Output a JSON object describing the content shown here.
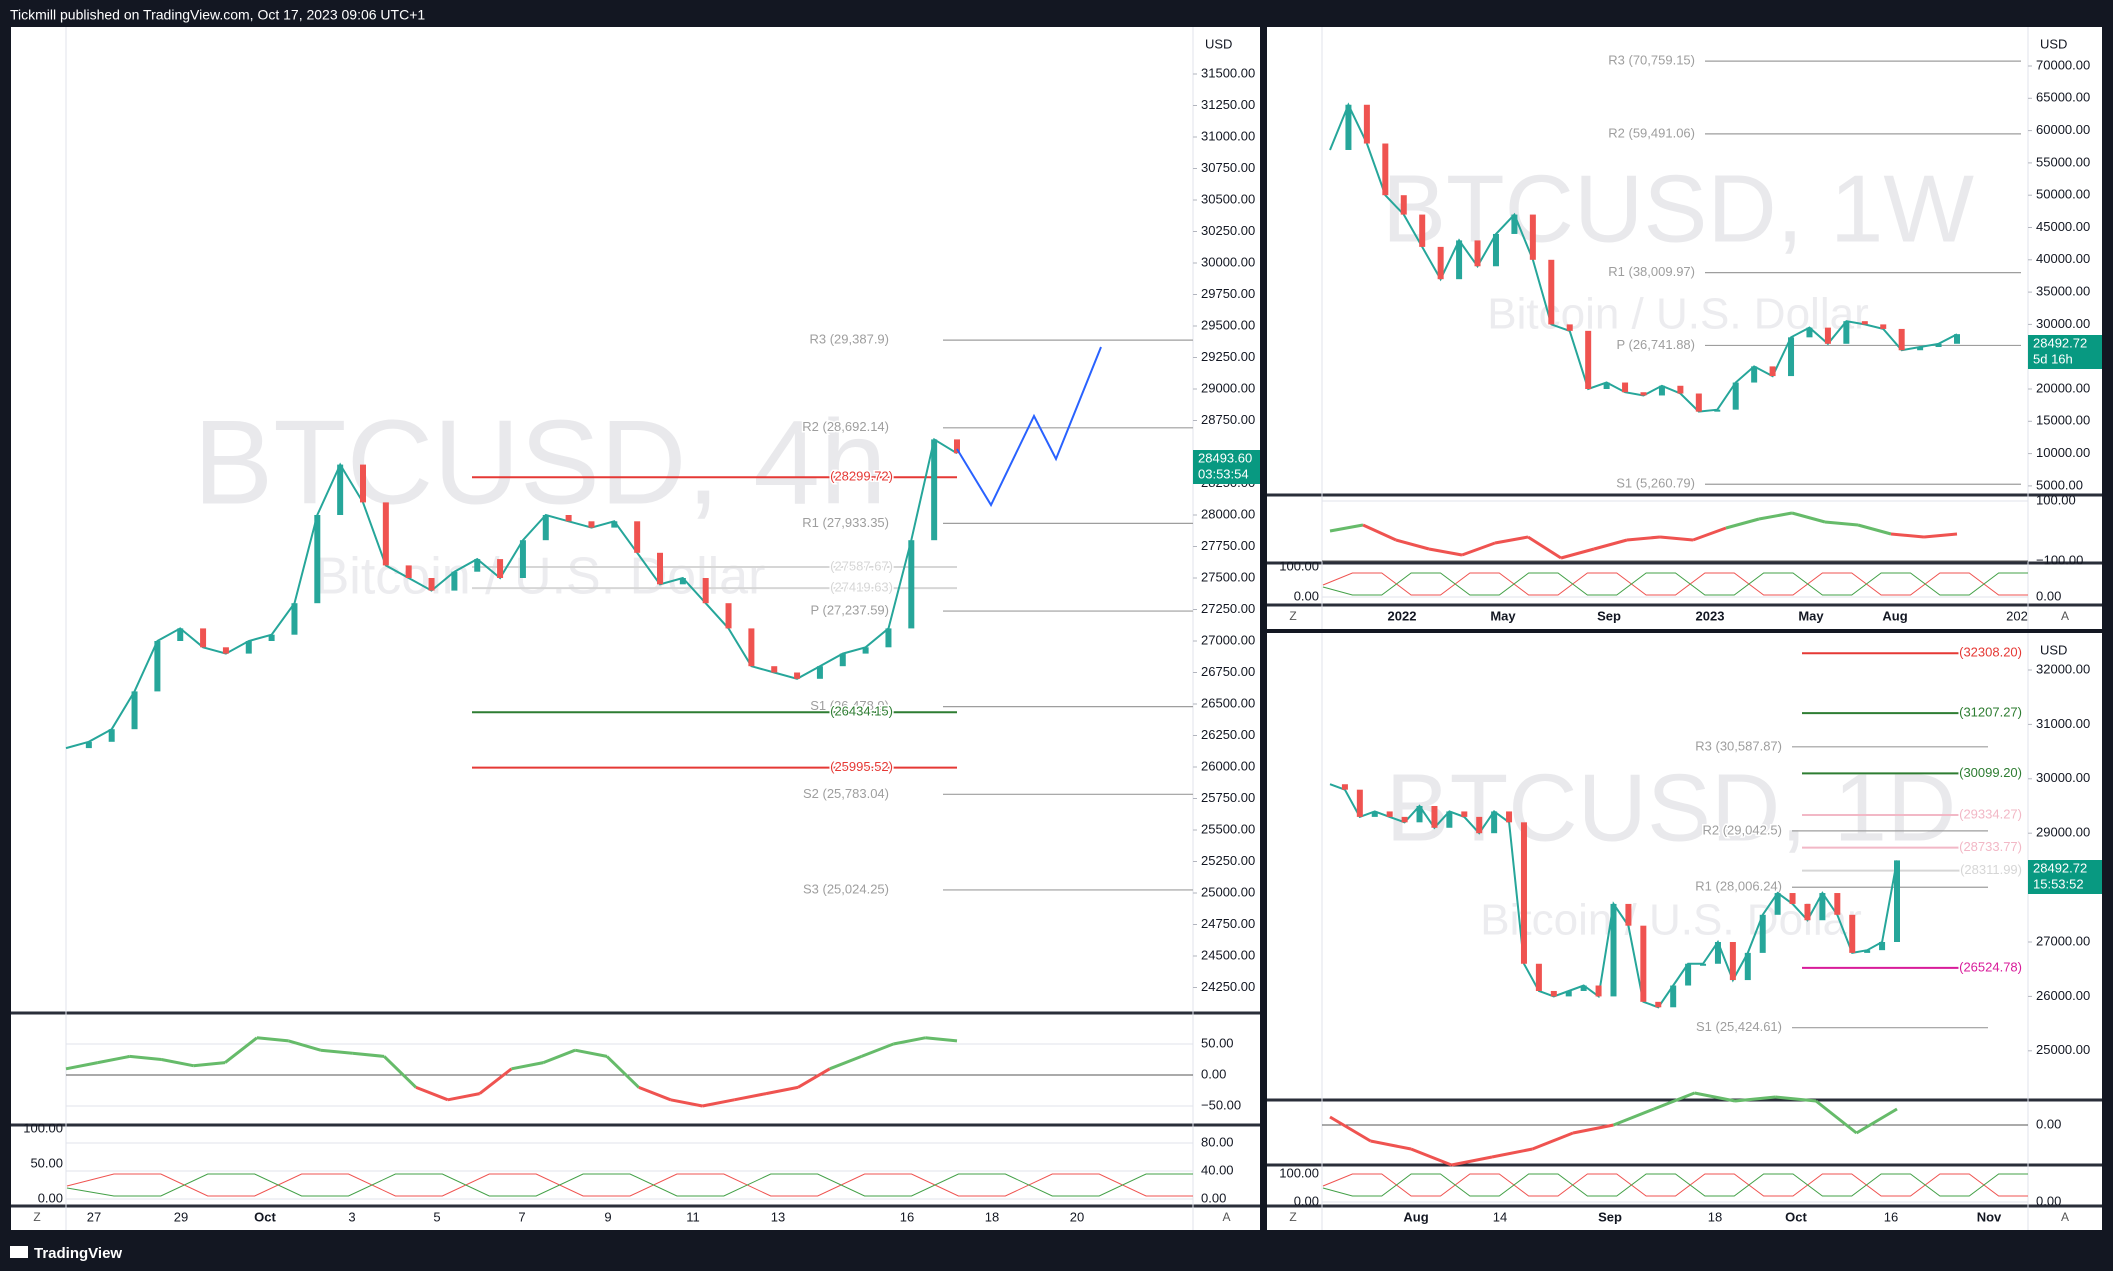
{
  "header": "Tickmill published on TradingView.com, Oct 17, 2023 09:06 UTC+1",
  "footer": "TradingView",
  "axis_buttons": [
    "Z",
    "A"
  ],
  "panels": [
    {
      "symbol": "BTCUSD, 4h",
      "description": "Bitcoin / U.S. Dollar",
      "currency": "USD",
      "last_price": "28493.60",
      "countdown": "03:53:54",
      "price_ticks": [
        {
          "value": 31500,
          "label": "31500.00"
        },
        {
          "value": 31250,
          "label": "31250.00"
        },
        {
          "value": 31000,
          "label": "31000.00"
        },
        {
          "value": 30750,
          "label": "30750.00"
        },
        {
          "value": 30500,
          "label": "30500.00"
        },
        {
          "value": 30250,
          "label": "30250.00"
        },
        {
          "value": 30000,
          "label": "30000.00"
        },
        {
          "value": 29750,
          "label": "29750.00"
        },
        {
          "value": 29500,
          "label": "29500.00"
        },
        {
          "value": 29250,
          "label": "29250.00"
        },
        {
          "value": 29000,
          "label": "29000.00"
        },
        {
          "value": 28750,
          "label": "28750.00"
        },
        {
          "value": 28250,
          "label": "28250.00"
        },
        {
          "value": 28000,
          "label": "28000.00"
        },
        {
          "value": 27750,
          "label": "27750.00"
        },
        {
          "value": 27500,
          "label": "27500.00"
        },
        {
          "value": 27250,
          "label": "27250.00"
        },
        {
          "value": 27000,
          "label": "27000.00"
        },
        {
          "value": 26750,
          "label": "26750.00"
        },
        {
          "value": 26500,
          "label": "26500.00"
        },
        {
          "value": 26250,
          "label": "26250.00"
        },
        {
          "value": 26000,
          "label": "26000.00"
        },
        {
          "value": 25750,
          "label": "25750.00"
        },
        {
          "value": 25500,
          "label": "25500.00"
        },
        {
          "value": 25250,
          "label": "25250.00"
        },
        {
          "value": 25000,
          "label": "25000.00"
        },
        {
          "value": 24750,
          "label": "24750.00"
        },
        {
          "value": 24500,
          "label": "24500.00"
        },
        {
          "value": 24250,
          "label": "24250.00"
        }
      ],
      "levels": [
        {
          "label": "R3 (29,387.9)",
          "value": 29387.9,
          "color": "#9e9e9e"
        },
        {
          "label": "R2 (28,692.14)",
          "value": 28692.14,
          "color": "#9e9e9e"
        },
        {
          "label": "(28299.72)",
          "value": 28299.72,
          "color": "#e53935"
        },
        {
          "label": "R1 (27,933.35)",
          "value": 27933.35,
          "color": "#9e9e9e"
        },
        {
          "label": "(27587.67)",
          "value": 27587.67,
          "color": "#d6d6d6"
        },
        {
          "label": "(27419.63)",
          "value": 27419.63,
          "color": "#d6d6d6"
        },
        {
          "label": "P (27,237.59)",
          "value": 27237.59,
          "color": "#9e9e9e"
        },
        {
          "label": "S1 (26,478.9)",
          "value": 26478.9,
          "color": "#9e9e9e"
        },
        {
          "label": "(26434.15)",
          "value": 26434.15,
          "color": "#2e7d32"
        },
        {
          "label": "(25995.52)",
          "value": 25995.52,
          "color": "#e53935"
        },
        {
          "label": "S2 (25,783.04)",
          "value": 25783.04,
          "color": "#9e9e9e"
        },
        {
          "label": "S3 (25,024.25)",
          "value": 25024.25,
          "color": "#9e9e9e"
        }
      ],
      "closes": [
        26150,
        26200,
        26300,
        26600,
        27000,
        27100,
        26950,
        26900,
        27000,
        27050,
        27300,
        28000,
        28400,
        28100,
        27600,
        27500,
        27400,
        27550,
        27650,
        27500,
        27800,
        28000,
        27950,
        27900,
        27950,
        27700,
        27450,
        27500,
        27300,
        27100,
        26800,
        26750,
        26700,
        26800,
        26900,
        26950,
        27100,
        27800,
        28600,
        28490
      ],
      "time_labels": [
        "27",
        "29",
        "Oct",
        "3",
        "5",
        "7",
        "9",
        "11",
        "13",
        "16",
        "18",
        "20"
      ],
      "osc1_ticks": [
        {
          "value": 50,
          "label": "50.00"
        },
        {
          "value": 0,
          "label": "0.00"
        },
        {
          "value": -50,
          "label": "−50.00"
        }
      ],
      "osc1": [
        10,
        20,
        30,
        25,
        15,
        20,
        60,
        55,
        40,
        35,
        30,
        -20,
        -40,
        -30,
        10,
        20,
        40,
        30,
        -20,
        -40,
        -50,
        -40,
        -30,
        -20,
        10,
        30,
        50,
        60,
        55
      ],
      "osc2_ticks": [
        {
          "value": 80,
          "label": "80.00"
        },
        {
          "value": 40,
          "label": "40.00"
        },
        {
          "value": 0,
          "label": "0.00"
        }
      ],
      "osc2_left_ticks": [
        {
          "value": 100,
          "label": "100.00"
        },
        {
          "value": 50,
          "label": "50.00"
        },
        {
          "value": 0,
          "label": "0.00"
        }
      ]
    },
    {
      "symbol": "BTCUSD, 1W",
      "description": "Bitcoin / U.S. Dollar",
      "currency": "USD",
      "last_price": "28492.72",
      "countdown": "5d 16h",
      "price_ticks": [
        {
          "value": 70000,
          "label": "70000.00"
        },
        {
          "value": 65000,
          "label": "65000.00"
        },
        {
          "value": 60000,
          "label": "60000.00"
        },
        {
          "value": 55000,
          "label": "55000.00"
        },
        {
          "value": 50000,
          "label": "50000.00"
        },
        {
          "value": 45000,
          "label": "45000.00"
        },
        {
          "value": 40000,
          "label": "40000.00"
        },
        {
          "value": 35000,
          "label": "35000.00"
        },
        {
          "value": 30000,
          "label": "30000.00"
        },
        {
          "value": 20000,
          "label": "20000.00"
        },
        {
          "value": 15000,
          "label": "15000.00"
        },
        {
          "value": 10000,
          "label": "10000.00"
        },
        {
          "value": 5000,
          "label": "5000.00"
        }
      ],
      "levels": [
        {
          "label": "R3 (70,759.15)",
          "value": 70759.15,
          "color": "#9e9e9e"
        },
        {
          "label": "R2 (59,491.06)",
          "value": 59491.06,
          "color": "#9e9e9e"
        },
        {
          "label": "R1 (38,009.97)",
          "value": 38009.97,
          "color": "#9e9e9e"
        },
        {
          "label": "P (26,741.88)",
          "value": 26741.88,
          "color": "#9e9e9e"
        },
        {
          "label": "S1 (5,260.79)",
          "value": 5260.79,
          "color": "#9e9e9e"
        }
      ],
      "closes": [
        57000,
        64000,
        58000,
        50000,
        47000,
        42000,
        37000,
        43000,
        39000,
        44000,
        47000,
        40000,
        30000,
        29000,
        20000,
        21000,
        19500,
        19000,
        20500,
        19300,
        16500,
        16800,
        21000,
        23500,
        22000,
        28000,
        29500,
        27000,
        30500,
        30000,
        29300,
        26000,
        26500,
        27000,
        28490
      ],
      "time_labels": [
        "2022",
        "May",
        "Sep",
        "2023",
        "May",
        "Aug",
        "202"
      ],
      "osc1_ticks": [
        {
          "value": 100,
          "label": "100.00"
        },
        {
          "value": -100,
          "label": "−100.00"
        }
      ],
      "osc1": [
        0,
        20,
        -30,
        -60,
        -80,
        -40,
        -20,
        -90,
        -60,
        -30,
        -20,
        -30,
        10,
        40,
        60,
        30,
        20,
        -10,
        -20,
        -10
      ],
      "osc2_ticks": [
        {
          "value": 0,
          "label": "0.00"
        }
      ],
      "osc2_left_ticks": [
        {
          "value": 100,
          "label": "100.00"
        },
        {
          "value": 0,
          "label": "0.00"
        }
      ]
    },
    {
      "symbol": "BTCUSD, 1D",
      "description": "Bitcoin / U.S. Dollar",
      "currency": "USD",
      "last_price": "28492.72",
      "countdown": "15:53:52",
      "price_ticks": [
        {
          "value": 32000,
          "label": "32000.00"
        },
        {
          "value": 31000,
          "label": "31000.00"
        },
        {
          "value": 30000,
          "label": "30000.00"
        },
        {
          "value": 29000,
          "label": "29000.00"
        },
        {
          "value": 28000,
          "label": "28000.00"
        },
        {
          "value": 27000,
          "label": "27000.00"
        },
        {
          "value": 26000,
          "label": "26000.00"
        },
        {
          "value": 25000,
          "label": "25000.00"
        }
      ],
      "levels": [
        {
          "label": "(32308.20)",
          "value": 32308.2,
          "color": "#e53935"
        },
        {
          "label": "(31207.27)",
          "value": 31207.27,
          "color": "#2e7d32"
        },
        {
          "label": "R3 (30,587.87)",
          "value": 30587.87,
          "color": "#9e9e9e"
        },
        {
          "label": "(30099.20)",
          "value": 30099.2,
          "color": "#2e7d32"
        },
        {
          "label": "(29334.27)",
          "value": 29334.27,
          "color": "#f2b8c6"
        },
        {
          "label": "R2 (29,042.5)",
          "value": 29042.5,
          "color": "#9e9e9e"
        },
        {
          "label": "(28733.77)",
          "value": 28733.77,
          "color": "#f2b8c6"
        },
        {
          "label": "(28311.99)",
          "value": 28311.99,
          "color": "#d6d6d6"
        },
        {
          "label": "R1 (28,006.24)",
          "value": 28006.24,
          "color": "#9e9e9e"
        },
        {
          "label": "(26524.78)",
          "value": 26524.78,
          "color": "#d81b9a"
        },
        {
          "label": "S1 (25,424.61)",
          "value": 25424.61,
          "color": "#9e9e9e"
        }
      ],
      "closes": [
        29900,
        29800,
        29300,
        29400,
        29300,
        29200,
        29500,
        29100,
        29400,
        29300,
        29000,
        29400,
        29200,
        26600,
        26100,
        26000,
        26100,
        26200,
        26000,
        27700,
        27300,
        25900,
        25800,
        26200,
        26600,
        26600,
        27000,
        26300,
        26800,
        27500,
        27900,
        27700,
        27400,
        27900,
        27500,
        26800,
        26850,
        27000,
        28500
      ],
      "time_labels": [
        "Aug",
        "14",
        "Sep",
        "18",
        "Oct",
        "16",
        "Nov"
      ],
      "osc1_ticks": [
        {
          "value": 0,
          "label": "0.00"
        }
      ],
      "osc1": [
        10,
        -20,
        -30,
        -50,
        -40,
        -30,
        -10,
        0,
        20,
        40,
        30,
        35,
        30,
        -10,
        20
      ],
      "osc2_ticks": [
        {
          "value": 0,
          "label": "0.00"
        }
      ],
      "osc2_left_ticks": [
        {
          "value": 100,
          "label": "100.00"
        },
        {
          "value": 0,
          "label": "0.00"
        }
      ]
    }
  ]
}
